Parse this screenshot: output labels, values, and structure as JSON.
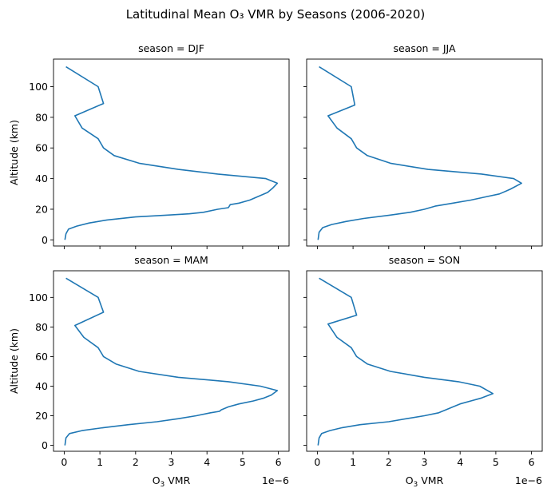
{
  "figure": {
    "title": "Latitudinal Mean O₃ VMR by Seasons (2006-2020)",
    "xlabel_main": "O",
    "xlabel_sub": "3",
    "xlabel_tail": " VMR",
    "ylabel": "Altitude (km)",
    "offset_text": "1e−6",
    "line_color": "#1f77b4"
  },
  "chart_data": [
    {
      "type": "line",
      "title": "season = DJF",
      "xlabel": "O₃ VMR",
      "ylabel": "Altitude (km)",
      "x_scale_note": "1e−6",
      "xlim": [
        -0.3,
        6.3
      ],
      "ylim": [
        -4,
        118
      ],
      "xticks": [
        0,
        1,
        2,
        3,
        4,
        5,
        6
      ],
      "yticks": [
        0,
        20,
        40,
        60,
        80,
        100
      ],
      "series": [
        {
          "x": [
            0.02,
            0.05,
            0.12,
            0.35,
            0.7,
            1.2,
            2.0,
            2.8,
            3.5,
            3.9,
            4.3,
            4.6,
            4.65,
            4.9,
            5.2,
            5.4,
            5.7,
            5.85,
            5.97,
            5.65,
            4.3,
            3.2,
            2.1,
            1.4,
            1.1,
            0.95,
            0.5,
            0.3,
            1.1,
            0.95,
            0.05
          ],
          "y": [
            0,
            4,
            7,
            9,
            11,
            13,
            15,
            16,
            17,
            18,
            20,
            21,
            23,
            24,
            26,
            28,
            31,
            34,
            37,
            40,
            43,
            46,
            50,
            55,
            60,
            66,
            73,
            81,
            89,
            100,
            113
          ]
        }
      ]
    },
    {
      "type": "line",
      "title": "season = JJA",
      "xlabel": "",
      "ylabel": "",
      "xlim": [
        -0.3,
        6.3
      ],
      "ylim": [
        -4,
        118
      ],
      "xticks": [
        0,
        1,
        2,
        3,
        4,
        5,
        6
      ],
      "yticks": [
        0,
        20,
        40,
        60,
        80,
        100
      ],
      "series": [
        {
          "x": [
            0.02,
            0.05,
            0.15,
            0.4,
            0.8,
            1.3,
            2.0,
            2.6,
            3.0,
            3.3,
            3.8,
            4.3,
            4.7,
            5.1,
            5.4,
            5.72,
            5.5,
            4.6,
            3.1,
            2.05,
            1.4,
            1.1,
            0.95,
            0.55,
            0.3,
            1.05,
            0.95,
            0.05
          ],
          "y": [
            0,
            5,
            8,
            10,
            12,
            14,
            16,
            18,
            20,
            22,
            24,
            26,
            28,
            30,
            33,
            37,
            40,
            43,
            46,
            50,
            55,
            60,
            66,
            73,
            81,
            88,
            100,
            113
          ]
        }
      ]
    },
    {
      "type": "line",
      "title": "season = MAM",
      "xlabel": "O₃ VMR",
      "ylabel": "Altitude (km)",
      "x_scale_note": "1e−6",
      "xlim": [
        -0.3,
        6.3
      ],
      "ylim": [
        -4,
        118
      ],
      "xticks": [
        0,
        1,
        2,
        3,
        4,
        5,
        6
      ],
      "yticks": [
        0,
        20,
        40,
        60,
        80,
        100
      ],
      "series": [
        {
          "x": [
            0.02,
            0.05,
            0.15,
            0.5,
            1.1,
            1.8,
            2.6,
            3.2,
            3.7,
            4.1,
            4.35,
            4.4,
            4.6,
            4.9,
            5.3,
            5.6,
            5.8,
            5.97,
            5.5,
            4.6,
            3.2,
            2.1,
            1.45,
            1.1,
            0.95,
            0.55,
            0.3,
            1.1,
            0.95,
            0.05
          ],
          "y": [
            0,
            5,
            8,
            10,
            12,
            14,
            16,
            18,
            20,
            22,
            23,
            24,
            26,
            28,
            30,
            32,
            34,
            37,
            40,
            43,
            46,
            50,
            55,
            60,
            66,
            73,
            81,
            90,
            100,
            113
          ]
        }
      ]
    },
    {
      "type": "line",
      "title": "season = SON",
      "xlabel": "O₃ VMR",
      "ylabel": "",
      "x_scale_note": "1e−6",
      "xlim": [
        -0.3,
        6.3
      ],
      "ylim": [
        -4,
        118
      ],
      "xticks": [
        0,
        1,
        2,
        3,
        4,
        5,
        6
      ],
      "yticks": [
        0,
        20,
        40,
        60,
        80,
        100
      ],
      "series": [
        {
          "x": [
            0.02,
            0.05,
            0.12,
            0.35,
            0.7,
            1.2,
            2.0,
            2.5,
            3.0,
            3.4,
            3.6,
            3.8,
            4.0,
            4.3,
            4.6,
            4.92,
            4.55,
            3.95,
            3.0,
            2.05,
            1.4,
            1.1,
            0.95,
            0.55,
            0.3,
            1.1,
            0.95,
            0.05
          ],
          "y": [
            0,
            5,
            8,
            10,
            12,
            14,
            16,
            18,
            20,
            22,
            24,
            26,
            28,
            30,
            32,
            35,
            40,
            43,
            46,
            50,
            55,
            60,
            66,
            73,
            82,
            88,
            100,
            113
          ]
        }
      ]
    }
  ]
}
